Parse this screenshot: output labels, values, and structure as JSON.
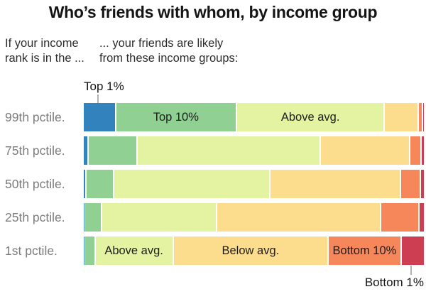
{
  "title": "Who’s friends with whom, by income group",
  "header": {
    "left": {
      "line1": "If your income",
      "line2": "rank is in the ..."
    },
    "right": {
      "line1": "... your friends are likely",
      "line2": "from these income groups:"
    }
  },
  "annotations": {
    "top_segment": "Top 1%",
    "bottom_segment": "Bottom 1%"
  },
  "chart_data": {
    "type": "bar",
    "stacked": true,
    "orientation": "horizontal",
    "unit": "percent of friends",
    "xlim": [
      0,
      100
    ],
    "grid": false,
    "legend": "labels inline on segments and callouts",
    "categories": [
      "Top 1%",
      "Top 10%",
      "Above avg.",
      "Below avg.",
      "Bottom 10%",
      "Bottom 1%"
    ],
    "colors": [
      "#3283bd",
      "#90d093",
      "#e3f3a1",
      "#fcdd8e",
      "#f6875b",
      "#cd3e52"
    ],
    "rows": [
      {
        "label": "99th pctile.",
        "values": [
          9.3,
          35.9,
          44.0,
          9.7,
          0.9,
          0.2
        ],
        "labeled_segments": [
          1,
          2
        ]
      },
      {
        "label": "75th pctile.",
        "values": [
          1.1,
          14.2,
          54.6,
          26.4,
          3.1,
          0.6
        ],
        "labeled_segments": []
      },
      {
        "label": "50th pctile.",
        "values": [
          0.5,
          7.9,
          46.3,
          38.9,
          5.5,
          0.9
        ],
        "labeled_segments": []
      },
      {
        "label": "25th pctile.",
        "values": [
          0.1,
          4.5,
          34.2,
          48.9,
          11.1,
          1.2
        ],
        "labeled_segments": []
      },
      {
        "label": "1st pctile.",
        "values": [
          0.1,
          2.6,
          23.0,
          46.2,
          21.4,
          6.7
        ],
        "labeled_segments": [
          2,
          3,
          4
        ]
      }
    ]
  }
}
